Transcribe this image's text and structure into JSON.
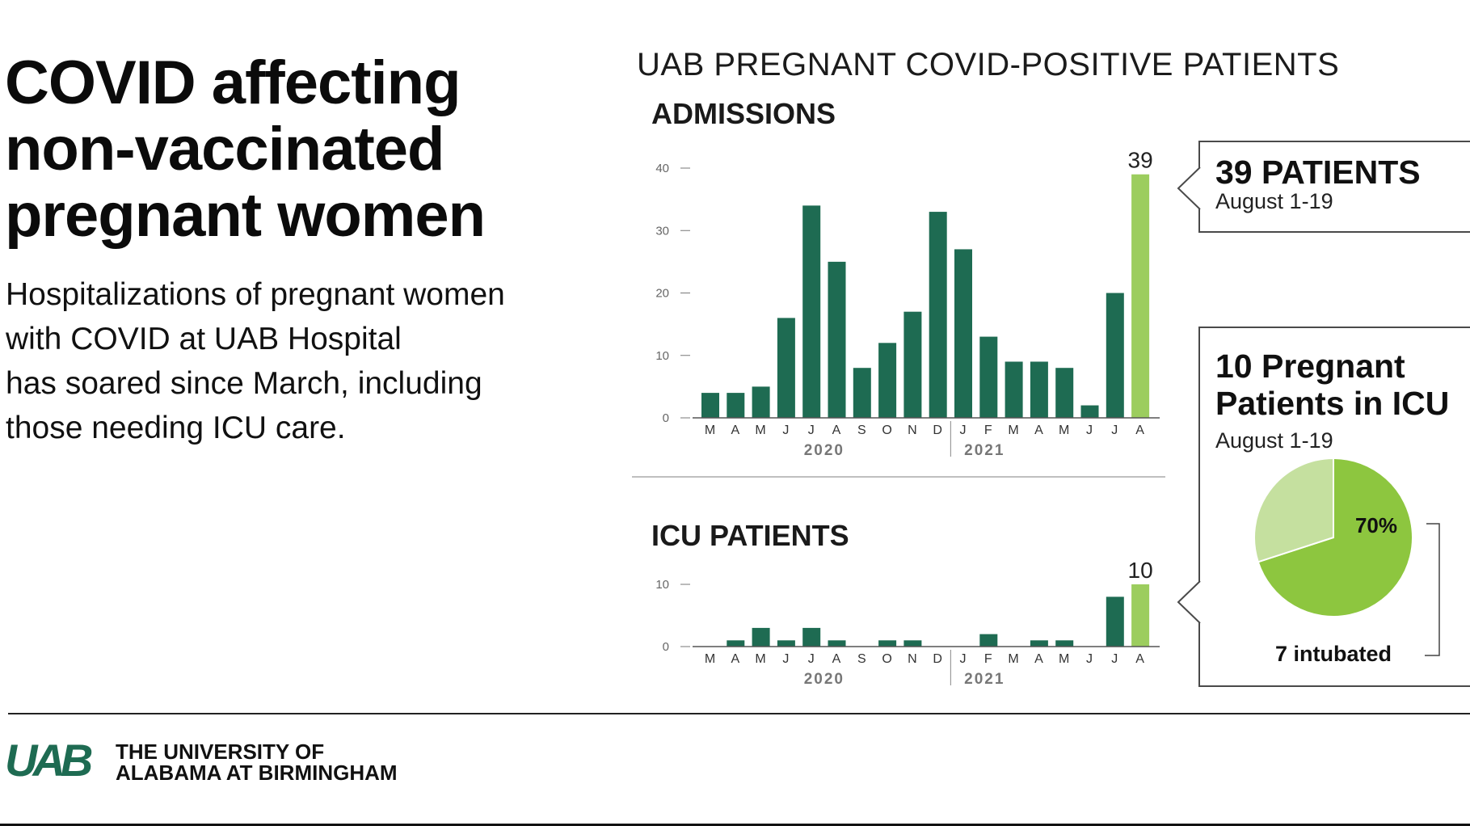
{
  "headline": "COVID affecting non-vaccinated pregnant women",
  "subtext_lines": [
    "Hospitalizations of pregnant women",
    "with COVID at UAB Hospital",
    "has soared since March, including",
    "those needing ICU care."
  ],
  "charts_title": "UAB PREGNANT COVID-POSITIVE PATIENTS",
  "colors": {
    "bar": "#1e6b52",
    "highlight": "#9ccd5e",
    "pie_main": "#8dc63f",
    "pie_rest": "#c5e09f"
  },
  "chart_data": [
    {
      "type": "bar",
      "title": "ADMISSIONS",
      "categories": [
        "M",
        "A",
        "M",
        "J",
        "J",
        "A",
        "S",
        "O",
        "N",
        "D",
        "J",
        "F",
        "M",
        "A",
        "M",
        "J",
        "J",
        "A"
      ],
      "year_labels": [
        "2020",
        "2021"
      ],
      "values": [
        4,
        4,
        5,
        16,
        34,
        25,
        8,
        12,
        17,
        33,
        27,
        13,
        9,
        9,
        8,
        2,
        20,
        39
      ],
      "ylim": [
        0,
        40
      ],
      "yticks": [
        0,
        10,
        20,
        30,
        40
      ],
      "ytick_labels": [
        "0",
        "10",
        "20",
        "30",
        "40"
      ],
      "highlight_label": "39"
    },
    {
      "type": "bar",
      "title": "ICU PATIENTS",
      "categories": [
        "M",
        "A",
        "M",
        "J",
        "J",
        "A",
        "S",
        "O",
        "N",
        "D",
        "J",
        "F",
        "M",
        "A",
        "M",
        "J",
        "J",
        "A"
      ],
      "year_labels": [
        "2020",
        "2021"
      ],
      "values": [
        0,
        1,
        3,
        1,
        3,
        1,
        0,
        1,
        1,
        0,
        0,
        2,
        0,
        1,
        1,
        0,
        8,
        10
      ],
      "ylim": [
        0,
        10
      ],
      "yticks": [
        0,
        10
      ],
      "ytick_labels": [
        "0",
        "10"
      ],
      "highlight_label": "10"
    },
    {
      "type": "pie",
      "values": [
        70,
        30
      ],
      "slice_label": "70%",
      "bracket_label": "7 intubated"
    }
  ],
  "callout_patients": {
    "title": "39 PATIENTS",
    "date": "August 1-19"
  },
  "callout_icu": {
    "title_line1": "10 Pregnant",
    "title_line2": "Patients in ICU",
    "date": "August 1-19"
  },
  "footer": {
    "logo_mark": "UAB",
    "line1": "THE UNIVERSITY OF",
    "line2": "ALABAMA AT BIRMINGHAM"
  }
}
